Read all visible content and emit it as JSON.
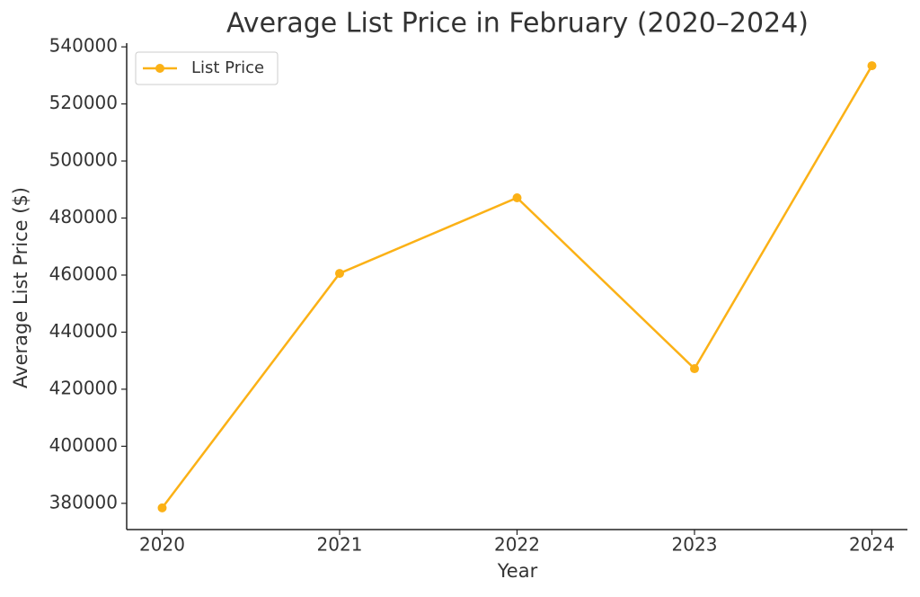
{
  "chart_data": {
    "type": "line",
    "title": "Average List Price in February (2020–2024)",
    "x_label": "Year",
    "y_label": "Average List Price ($)",
    "x": [
      2020,
      2021,
      2022,
      2023,
      2024
    ],
    "series": [
      {
        "name": "List Price",
        "color": "#fbb116",
        "values": [
          378400,
          460600,
          487100,
          427200,
          533400
        ]
      }
    ],
    "xlim": [
      2019.8,
      2024.2
    ],
    "xticks": [
      2020,
      2021,
      2022,
      2023,
      2024
    ],
    "ylim": [
      370800,
      541300
    ],
    "yticks": [
      380000,
      400000,
      420000,
      440000,
      460000,
      480000,
      500000,
      520000,
      540000
    ],
    "legend": "upper left",
    "grid": false
  }
}
